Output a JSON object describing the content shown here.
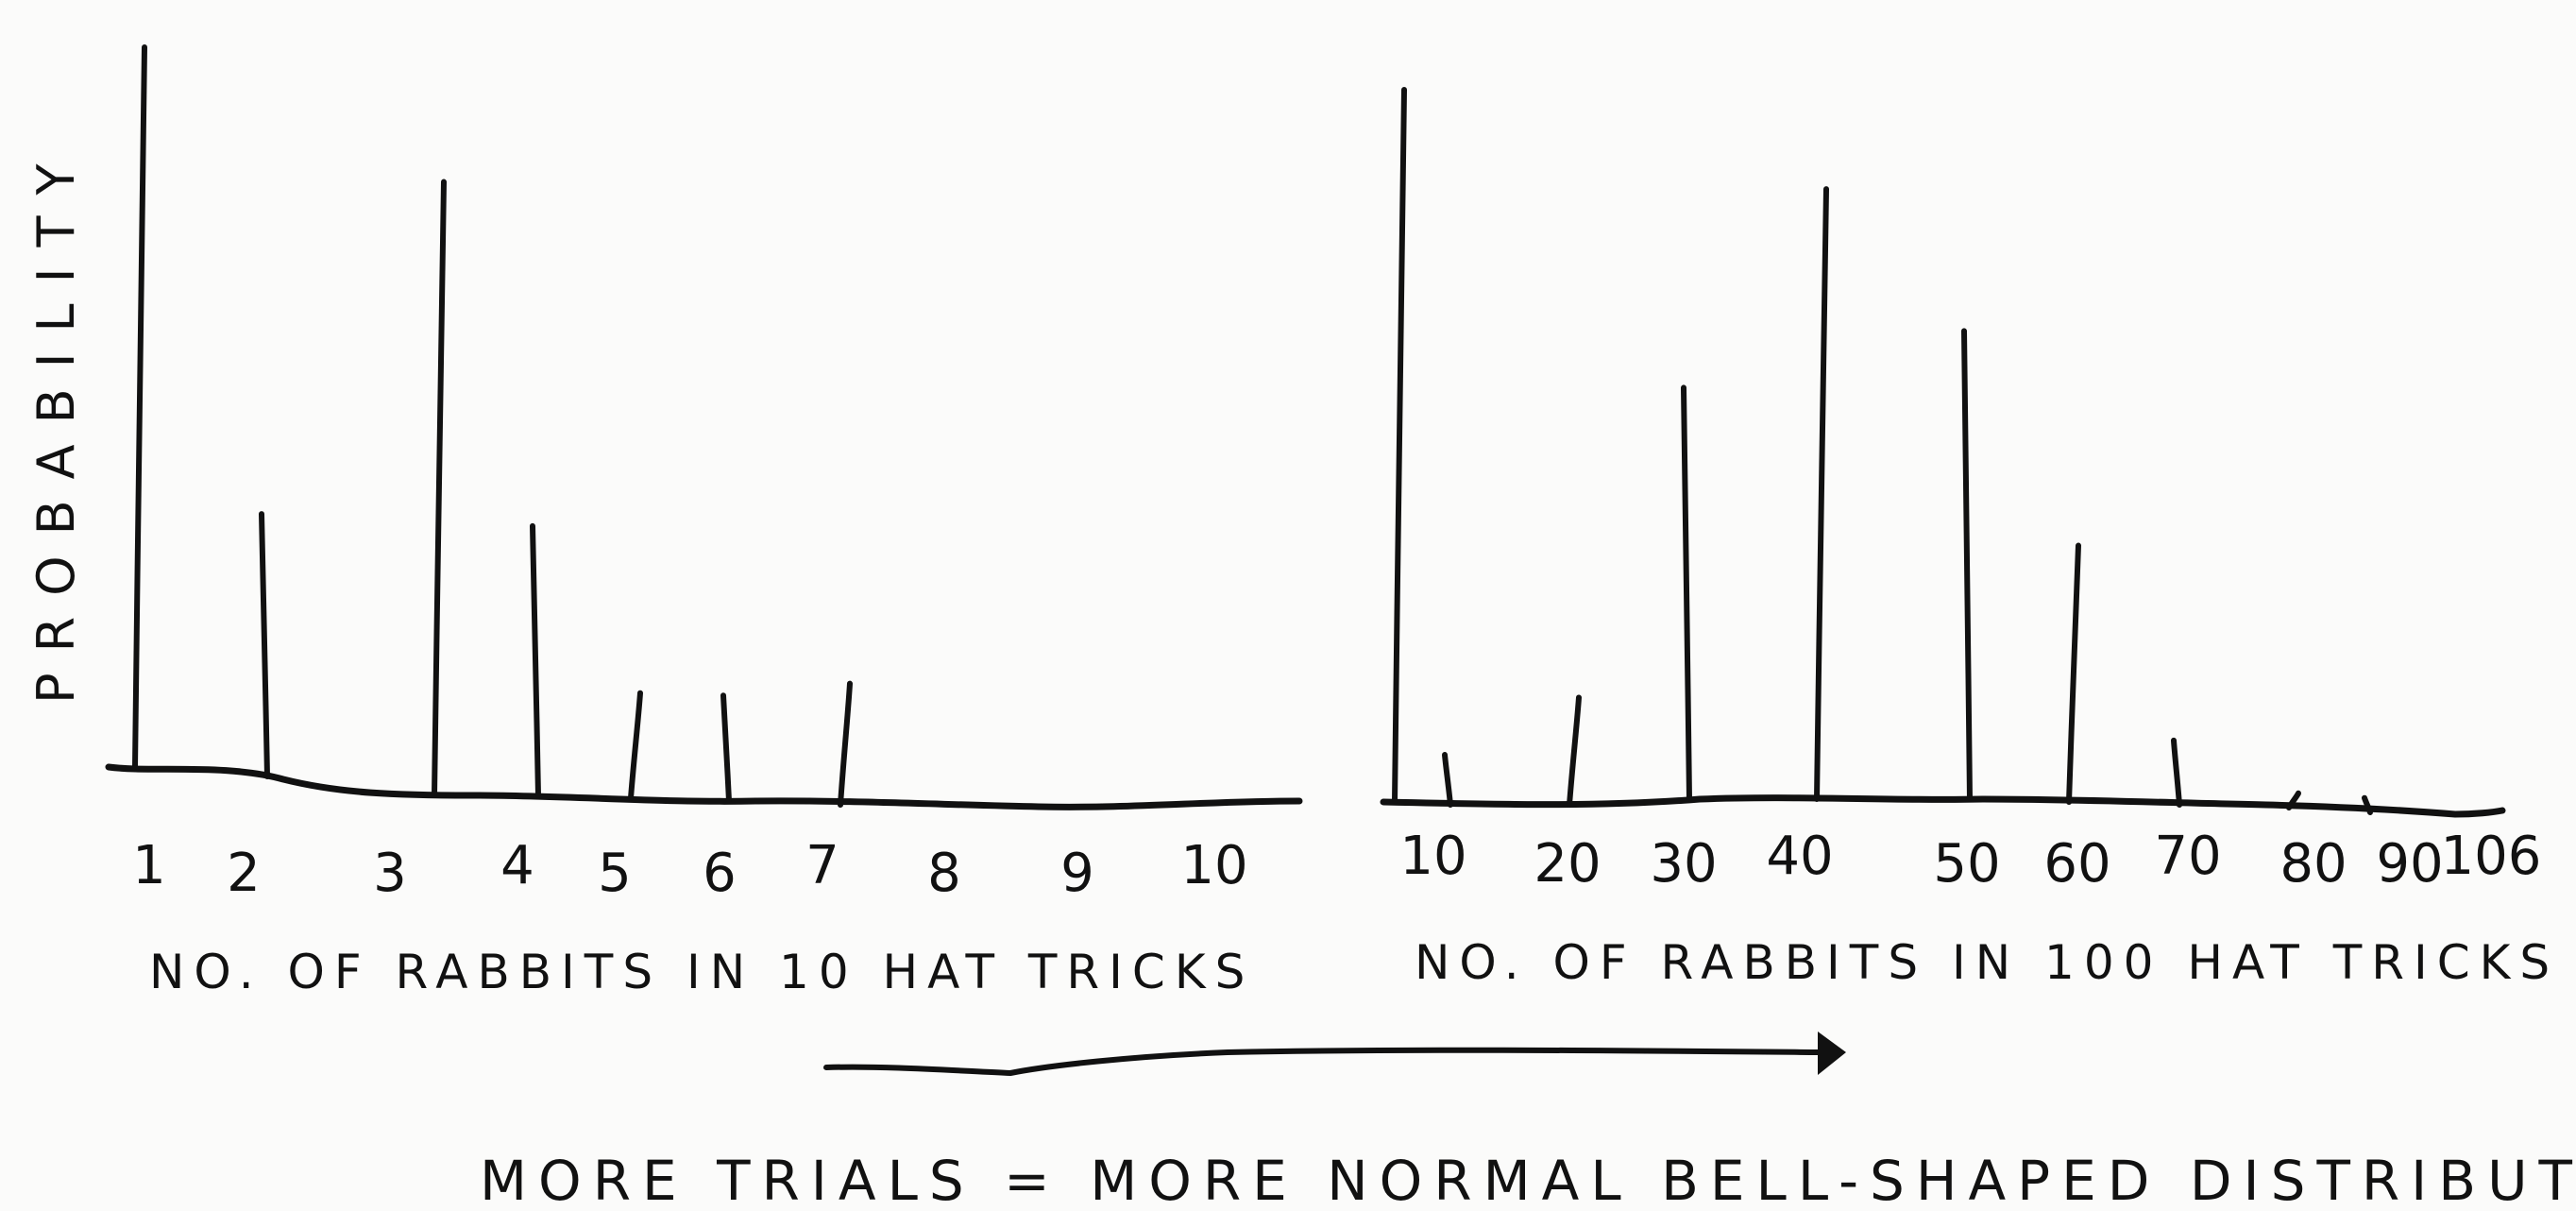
{
  "chart_data": [
    {
      "type": "bar",
      "ylabel": "PROBABILITY",
      "xlabel": "NO. OF RABBITS IN 10 HAT TRICKS",
      "categories": [
        "1",
        "2",
        "3",
        "4",
        "5",
        "6",
        "7",
        "8",
        "9",
        "10"
      ],
      "values": [
        1.0,
        0.36,
        0.82,
        0.36,
        0.14,
        0.14,
        0.16,
        0,
        0,
        0
      ],
      "ylim": [
        0,
        1
      ],
      "grid": false
    },
    {
      "type": "bar",
      "ylabel": "",
      "xlabel": "NO. OF RABBITS IN 100 HAT TRICKS",
      "categories": [
        "10",
        "20",
        "30",
        "40",
        "50",
        "60",
        "70",
        "80",
        "90",
        "106"
      ],
      "values": [
        1.0,
        0.07,
        0.15,
        0.58,
        0.86,
        0.66,
        0.36,
        0.09,
        0.02,
        0.02
      ],
      "ylim": [
        0,
        1
      ],
      "grid": false
    }
  ],
  "caption": "MORE TRIALS = MORE NORMAL BELL-SHAPED DISTRIBUTION",
  "colors": {
    "ink": "#111111",
    "paper": "#fbfbfa"
  }
}
